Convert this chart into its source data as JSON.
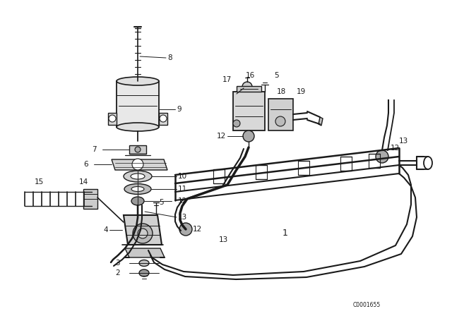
{
  "bg_color": "#ffffff",
  "lc": "#1a1a1a",
  "fig_width": 6.4,
  "fig_height": 4.48,
  "dpi": 100,
  "watermark": "C0001655"
}
